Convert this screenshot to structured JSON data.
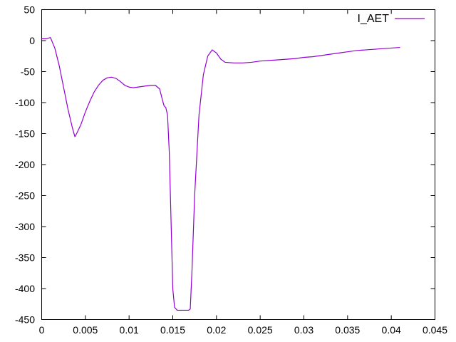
{
  "chart_data": {
    "type": "line",
    "title": "",
    "xlabel": "",
    "ylabel": "",
    "xlim": [
      0,
      0.045
    ],
    "ylim": [
      -450,
      50
    ],
    "x_ticks": [
      {
        "value": 0,
        "label": "0"
      },
      {
        "value": 0.005,
        "label": "0.005"
      },
      {
        "value": 0.01,
        "label": "0.01"
      },
      {
        "value": 0.015,
        "label": "0.015"
      },
      {
        "value": 0.02,
        "label": "0.02"
      },
      {
        "value": 0.025,
        "label": "0.025"
      },
      {
        "value": 0.03,
        "label": "0.03"
      },
      {
        "value": 0.035,
        "label": "0.035"
      },
      {
        "value": 0.04,
        "label": "0.04"
      },
      {
        "value": 0.045,
        "label": "0.045"
      }
    ],
    "y_ticks": [
      {
        "value": 50,
        "label": "50"
      },
      {
        "value": 0,
        "label": "0"
      },
      {
        "value": -50,
        "label": "-50"
      },
      {
        "value": -100,
        "label": "-100"
      },
      {
        "value": -150,
        "label": "-150"
      },
      {
        "value": -200,
        "label": "-200"
      },
      {
        "value": -250,
        "label": "-250"
      },
      {
        "value": -300,
        "label": "-300"
      },
      {
        "value": -350,
        "label": "-350"
      },
      {
        "value": -400,
        "label": "-400"
      },
      {
        "value": -450,
        "label": "-450"
      }
    ],
    "grid": false,
    "legend": {
      "position": "top-right"
    },
    "series": [
      {
        "name": "I_AET",
        "color": "#9400d3",
        "x": [
          0,
          0.0005,
          0.001,
          0.0015,
          0.002,
          0.0025,
          0.003,
          0.0035,
          0.0038,
          0.004,
          0.0045,
          0.005,
          0.0055,
          0.006,
          0.0065,
          0.007,
          0.0075,
          0.008,
          0.0085,
          0.009,
          0.0095,
          0.01,
          0.0105,
          0.011,
          0.0115,
          0.012,
          0.0125,
          0.013,
          0.0135,
          0.0138,
          0.014,
          0.0142,
          0.0144,
          0.0146,
          0.0148,
          0.015,
          0.0152,
          0.0155,
          0.016,
          0.0165,
          0.0168,
          0.017,
          0.0172,
          0.0175,
          0.018,
          0.0185,
          0.019,
          0.0195,
          0.02,
          0.0205,
          0.021,
          0.022,
          0.023,
          0.024,
          0.025,
          0.026,
          0.027,
          0.028,
          0.029,
          0.03,
          0.031,
          0.032,
          0.033,
          0.034,
          0.035,
          0.036,
          0.037,
          0.038,
          0.039,
          0.04,
          0.041
        ],
        "y": [
          3,
          3,
          5,
          -12,
          -40,
          -75,
          -110,
          -140,
          -155,
          -150,
          -135,
          -115,
          -98,
          -83,
          -72,
          -64,
          -60,
          -59,
          -61,
          -66,
          -72,
          -75,
          -76,
          -75,
          -74,
          -73,
          -72,
          -72,
          -78,
          -95,
          -105,
          -108,
          -120,
          -180,
          -290,
          -400,
          -430,
          -435,
          -435,
          -435,
          -435,
          -433,
          -370,
          -250,
          -120,
          -55,
          -25,
          -15,
          -20,
          -30,
          -35,
          -36,
          -36,
          -35,
          -33,
          -32,
          -31,
          -30,
          -29,
          -27,
          -26,
          -24,
          -22,
          -20,
          -18,
          -16,
          -15,
          -14,
          -13,
          -12,
          -11
        ]
      }
    ]
  }
}
